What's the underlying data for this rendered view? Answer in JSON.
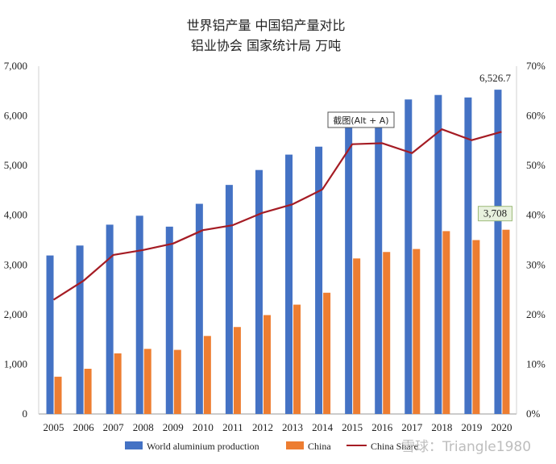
{
  "chart_data": {
    "type": "bar",
    "title": "世界铝产量 中国铝产量对比",
    "subtitle": "铝业协会 国家统计局 万吨",
    "categories": [
      "2005",
      "2006",
      "2007",
      "2008",
      "2009",
      "2010",
      "2011",
      "2012",
      "2013",
      "2014",
      "2015",
      "2016",
      "2017",
      "2018",
      "2019",
      "2020"
    ],
    "series": [
      {
        "name": "World aluminium production",
        "type": "bar",
        "axis": "left",
        "color": "#4472c4",
        "values": [
          3190,
          3390,
          3810,
          3990,
          3770,
          4230,
          4610,
          4910,
          5220,
          5380,
          5780,
          5880,
          6330,
          6420,
          6370,
          6526.7
        ]
      },
      {
        "name": "China",
        "type": "bar",
        "axis": "left",
        "color": "#ed7d31",
        "values": [
          750,
          910,
          1220,
          1310,
          1290,
          1570,
          1750,
          1990,
          2200,
          2440,
          3130,
          3260,
          3320,
          3680,
          3500,
          3708
        ]
      },
      {
        "name": "China Share",
        "type": "line",
        "axis": "right",
        "color": "#a51c24",
        "values": [
          0.23,
          0.268,
          0.32,
          0.33,
          0.343,
          0.37,
          0.38,
          0.405,
          0.422,
          0.452,
          0.543,
          0.545,
          0.525,
          0.573,
          0.551,
          0.568
        ]
      }
    ],
    "y_left": {
      "min": 0,
      "max": 7000,
      "step": 1000,
      "tick_labels": [
        "0",
        "1,000",
        "2,000",
        "3,000",
        "4,000",
        "5,000",
        "6,000",
        "7,000"
      ]
    },
    "y_right": {
      "min": 0,
      "max": 0.7,
      "step": 0.1,
      "tick_labels": [
        "0%",
        "10%",
        "20%",
        "30%",
        "40%",
        "50%",
        "60%",
        "70%"
      ]
    },
    "data_labels": {
      "world_2020": "6,526.7",
      "china_2020": "3,708"
    },
    "legend": {
      "position": "bottom",
      "labels": [
        "World aluminium production",
        "China",
        "China Share"
      ]
    },
    "grid": false
  },
  "overlay": {
    "tooltip": "截图(Alt + A)",
    "watermark": "雪球：Triangle1980"
  }
}
